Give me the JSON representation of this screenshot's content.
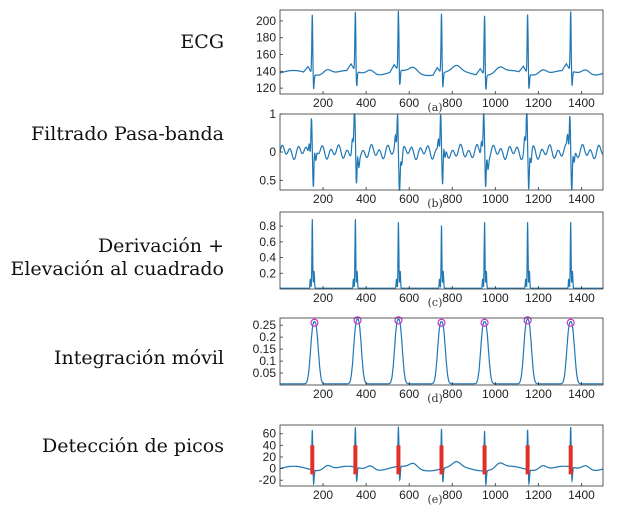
{
  "accent_color": "#1f77b4",
  "marker_color": "#e0302a",
  "peak_marker_color": "#cc33cc",
  "chart_data": [
    {
      "type": "line",
      "row_label": "ECG",
      "caption": "(a)",
      "x_ticks": [
        "200",
        "400",
        "600",
        "800",
        "1000",
        "1200",
        "1400"
      ],
      "y_ticks": [
        "200",
        "180",
        "160",
        "140",
        "120"
      ],
      "xlim": [
        0,
        1500
      ],
      "ylim": [
        113,
        213
      ],
      "baseline": 138,
      "beats": [
        150,
        350,
        550,
        750,
        950,
        1150,
        1350
      ],
      "peak_value": 210,
      "trough_value": 120,
      "grid": false
    },
    {
      "type": "line",
      "row_label": "Filtrado Pasa-banda",
      "caption": "(b)",
      "x_ticks": [
        "200",
        "400",
        "600",
        "800",
        "1000",
        "1200",
        "1400"
      ],
      "y_ticks": [
        "1",
        "0",
        "0.5"
      ],
      "xlim": [
        0,
        1500
      ],
      "ylim": [
        -1,
        1
      ],
      "beats": [
        150,
        350,
        550,
        750,
        950,
        1150,
        1350
      ],
      "grid": false
    },
    {
      "type": "line",
      "row_label": "Derivación +",
      "row_label_2": "Elevación al cuadrado",
      "caption": "(c)",
      "x_ticks": [
        "200",
        "400",
        "600",
        "800",
        "1000",
        "1200",
        "1400"
      ],
      "y_ticks": [
        "0.8",
        "0.6",
        "0.4",
        "0.2"
      ],
      "xlim": [
        0,
        1500
      ],
      "ylim": [
        0,
        0.98
      ],
      "beats": [
        150,
        350,
        550,
        750,
        950,
        1150,
        1350
      ],
      "peak_values": [
        0.88,
        0.88,
        0.84,
        0.8,
        0.84,
        0.84,
        0.84
      ],
      "grid": false
    },
    {
      "type": "line",
      "row_label": "Integración móvil",
      "caption": "(d)",
      "x_ticks": [
        "200",
        "400",
        "600",
        "800",
        "1000",
        "1200",
        "1400"
      ],
      "y_ticks": [
        "0.25",
        "0.2",
        "0.15",
        "0.1",
        "0.05"
      ],
      "xlim": [
        0,
        1500
      ],
      "ylim": [
        0,
        0.28
      ],
      "beats": [
        160,
        360,
        550,
        750,
        950,
        1150,
        1350
      ],
      "peak_values": [
        0.26,
        0.27,
        0.27,
        0.26,
        0.26,
        0.27,
        0.26
      ],
      "grid": false
    },
    {
      "type": "line",
      "row_label": "Detección de picos",
      "caption": "(e)",
      "x_ticks": [
        "200",
        "400",
        "600",
        "800",
        "1000",
        "1200",
        "1400"
      ],
      "y_ticks": [
        "60",
        "40",
        "20",
        "0",
        "-20"
      ],
      "xlim": [
        0,
        1500
      ],
      "ylim": [
        -30,
        75
      ],
      "baseline": 0,
      "beats": [
        150,
        350,
        550,
        750,
        950,
        1150,
        1350
      ],
      "peak_value": 70,
      "trough_value": -25,
      "marker_top": 40,
      "marker_bottom": -10,
      "grid": false
    }
  ]
}
